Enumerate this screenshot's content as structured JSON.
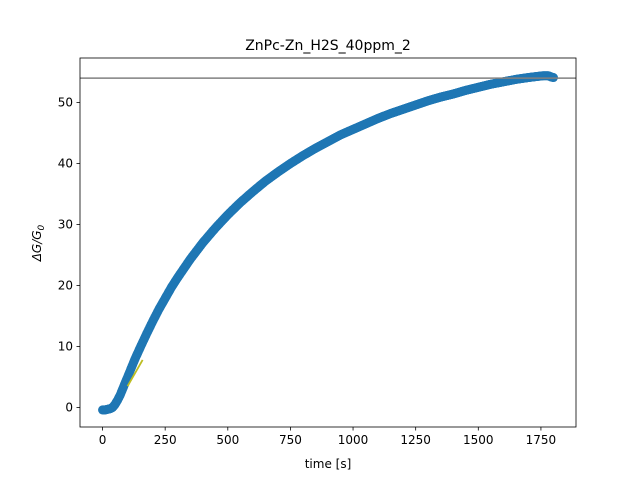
{
  "chart_data": {
    "type": "scatter",
    "title": "ZnPc-Zn_H2S_40ppm_2",
    "xlabel": "time [s]",
    "ylabel": "ΔG/G",
    "ylabel_subscript": "0",
    "xlim": [
      -90,
      1890
    ],
    "ylim": [
      -3.2,
      57.3
    ],
    "x_ticks": [
      0,
      250,
      500,
      750,
      1000,
      1250,
      1500,
      1750
    ],
    "y_ticks": [
      0,
      10,
      20,
      30,
      40,
      50
    ],
    "grid": false,
    "legend": "none",
    "series": [
      {
        "kind": "scatter",
        "color": "#1f77b4",
        "x": [
          0,
          10,
          20,
          30,
          40,
          50,
          60,
          70,
          80,
          90,
          100,
          110,
          120,
          130,
          140,
          150,
          175,
          200,
          225,
          250,
          275,
          300,
          350,
          400,
          450,
          500,
          550,
          600,
          650,
          700,
          750,
          800,
          850,
          900,
          950,
          1000,
          1050,
          1100,
          1150,
          1200,
          1250,
          1300,
          1350,
          1400,
          1450,
          1500,
          1550,
          1600,
          1650,
          1700,
          1720,
          1740,
          1760,
          1780,
          1790,
          1800
        ],
        "y": [
          -0.4,
          -0.4,
          -0.3,
          -0.2,
          0.0,
          0.5,
          1.2,
          2.0,
          3.0,
          4.0,
          5.0,
          6.0,
          7.0,
          8.0,
          8.9,
          9.8,
          12.0,
          14.1,
          16.1,
          17.9,
          19.7,
          21.3,
          24.3,
          27.0,
          29.4,
          31.6,
          33.6,
          35.4,
          37.1,
          38.6,
          40.0,
          41.3,
          42.5,
          43.6,
          44.7,
          45.6,
          46.5,
          47.4,
          48.2,
          48.9,
          49.6,
          50.3,
          50.9,
          51.4,
          52.0,
          52.5,
          53.0,
          53.4,
          53.8,
          54.1,
          54.2,
          54.3,
          54.4,
          54.4,
          54.2,
          54.1
        ]
      },
      {
        "kind": "line",
        "color": "#bcbd22",
        "x": [
          100,
          160
        ],
        "y": [
          3.5,
          7.8
        ]
      },
      {
        "kind": "hline",
        "color": "#808080",
        "y": 54.0
      }
    ]
  }
}
